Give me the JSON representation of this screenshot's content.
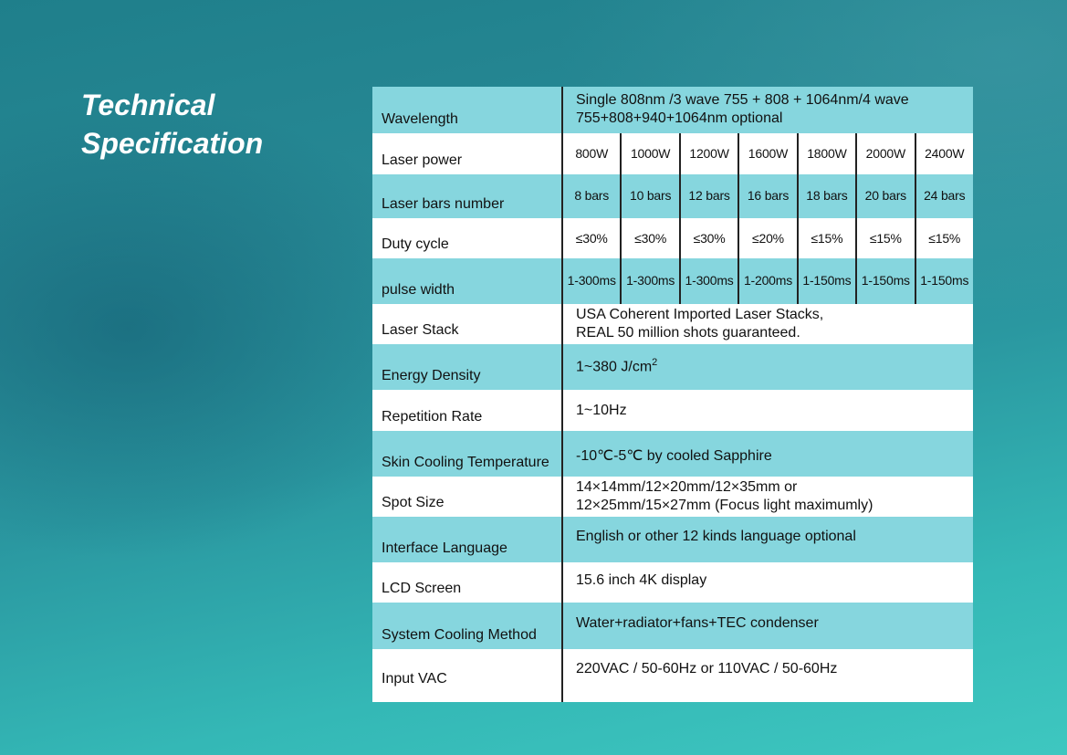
{
  "heading": {
    "line1": "Technical",
    "line2": "Specification"
  },
  "spec": {
    "wavelength": {
      "label": "Wavelength",
      "line1": "Single 808nm /3 wave 755 + 808 + 1064nm/4 wave",
      "line2": "755+808+940+1064nm optional"
    },
    "laser_power": {
      "label": "Laser power",
      "values": [
        "800W",
        "1000W",
        "1200W",
        "1600W",
        "1800W",
        "2000W",
        "2400W"
      ]
    },
    "laser_bars": {
      "label": "Laser bars number",
      "values": [
        "8 bars",
        "10 bars",
        "12 bars",
        "16 bars",
        "18 bars",
        "20 bars",
        "24 bars"
      ]
    },
    "duty_cycle": {
      "label": "Duty cycle",
      "values": [
        "≤30%",
        "≤30%",
        "≤30%",
        "≤20%",
        "≤15%",
        "≤15%",
        "≤15%"
      ]
    },
    "pulse_width": {
      "label": "pulse width",
      "values": [
        "1-300ms",
        "1-300ms",
        "1-300ms",
        "1-200ms",
        "1-150ms",
        "1-150ms",
        "1-150ms"
      ]
    },
    "laser_stack": {
      "label": "Laser Stack",
      "line1": "USA Coherent Imported Laser Stacks,",
      "line2": "REAL 50 million shots guaranteed."
    },
    "energy_density": {
      "label": "Energy Density",
      "value": "1~380 J/cm",
      "superscript": "2"
    },
    "repetition_rate": {
      "label": "Repetition Rate",
      "value": "1~10Hz"
    },
    "skin_cooling": {
      "label": "Skin Cooling Temperature",
      "value": "-10℃-5℃ by cooled Sapphire"
    },
    "spot_size": {
      "label": "Spot Size",
      "line1": "14×14mm/12×20mm/12×35mm or",
      "line2": "12×25mm/15×27mm (Focus light maximumly)"
    },
    "interface_language": {
      "label": "Interface Language",
      "value": "English or other 12 kinds language optional"
    },
    "lcd_screen": {
      "label": "LCD Screen",
      "value": "15.6 inch 4K display"
    },
    "system_cooling": {
      "label": "System Cooling Method",
      "value": "Water+radiator+fans+TEC condenser"
    },
    "input_vac": {
      "label": "Input VAC",
      "value": "220VAC / 50-60Hz or 110VAC / 50-60Hz"
    }
  },
  "colors": {
    "row_teal": "#86d6de",
    "row_white": "#ffffff",
    "title": "#ffffff"
  }
}
